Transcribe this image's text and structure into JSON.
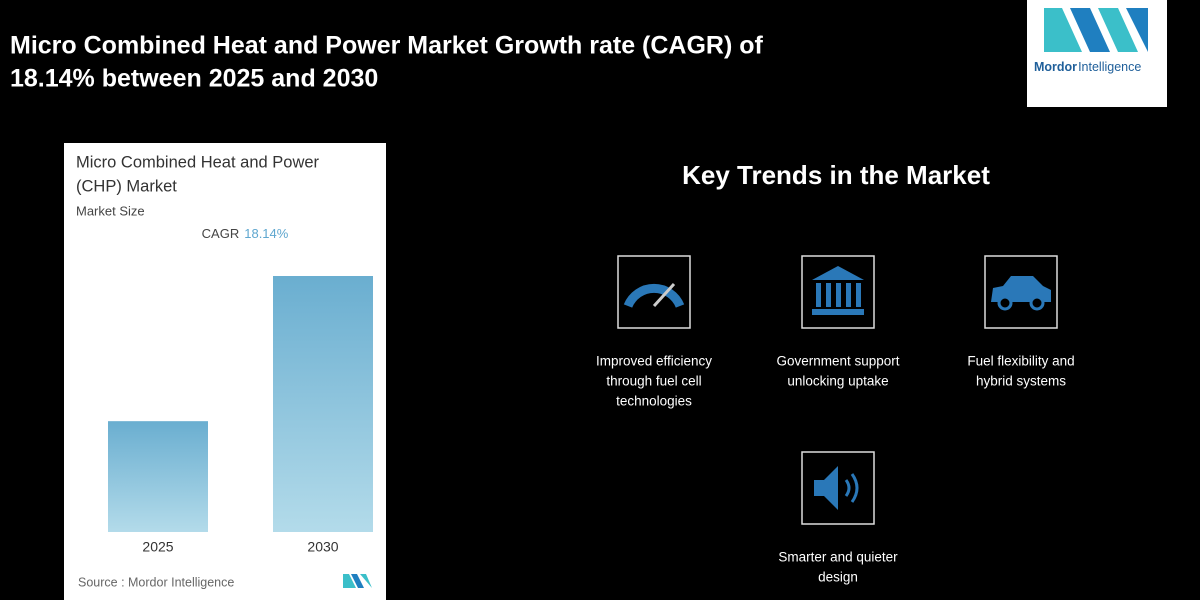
{
  "header": {
    "title_lines": [
      "Micro Combined Heat and Power Market Growth rate (CAGR) of",
      "18.14% between 2025 and 2030"
    ]
  },
  "logo": {
    "brand": "Mordor",
    "brand_suffix": "Intelligence"
  },
  "chart_data": {
    "type": "bar",
    "title_lines": [
      "Micro Combined Heat and Power",
      "(CHP) Market"
    ],
    "subtitle": "Market Size",
    "cagr_label": "CAGR",
    "cagr_value": "18.14%",
    "categories": [
      "2025",
      "2030"
    ],
    "values": [
      1,
      2.31
    ],
    "ylim": [
      0,
      2.31
    ],
    "color": "#6aaed0",
    "source": "Source : Mordor Intelligence"
  },
  "trends": {
    "heading": "Key Trends in the Market",
    "items": [
      {
        "icon": "gauge",
        "lines": [
          "Improved efficiency",
          "through fuel cell",
          "technologies"
        ]
      },
      {
        "icon": "bank",
        "lines": [
          "Government support",
          "unlocking uptake"
        ]
      },
      {
        "icon": "car",
        "lines": [
          "Fuel flexibility and",
          "hybrid systems"
        ]
      },
      {
        "icon": "speaker",
        "lines": [
          "Smarter and quieter",
          "design"
        ]
      }
    ]
  }
}
